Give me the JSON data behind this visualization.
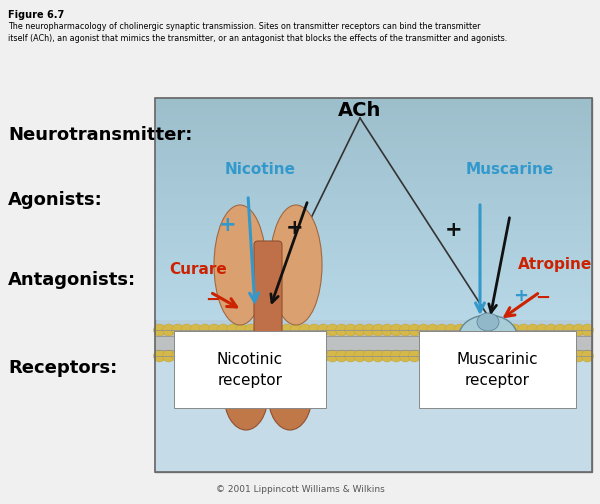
{
  "figure_title": "Figure 6.7",
  "figure_caption": "The neuropharmacology of cholinergic synaptic transmission. Sites on transmitter receptors can bind the transmitter\nitself (ACh), an agonist that mimics the transmitter, or an antagonist that blocks the effects of the transmitter and agonists.",
  "label_neurotransmitter": "Neurotransmitter:",
  "label_ach": "ACh",
  "label_agonists": "Agonists:",
  "label_antagonists": "Antagonists:",
  "label_receptors": "Receptors:",
  "label_nicotine": "Nicotine",
  "label_muscarine": "Muscarine",
  "label_curare": "Curare",
  "label_atropine": "Atropine",
  "label_nicotinic": "Nicotinic\nreceptor",
  "label_muscarinic": "Muscarinic\nreceptor",
  "copyright": "© 2001 Lippincott Williams & Wilkins",
  "color_blue": "#3399cc",
  "color_red": "#cc2200",
  "color_black": "#111111",
  "color_bg_panel_top": "#b8d4e0",
  "color_bg_panel_bot": "#c8e0ee",
  "color_bg_outer": "#f0f0f0",
  "color_membrane_gold": "#d4b84a",
  "color_membrane_silver": "#b8b8b8",
  "color_membrane_bot_bg": "#c0d8e8",
  "color_nic_light": "#dda882",
  "color_nic_dark": "#b07040",
  "color_mus_light": "#a8c8d8",
  "color_mus_dark": "#6090a8"
}
